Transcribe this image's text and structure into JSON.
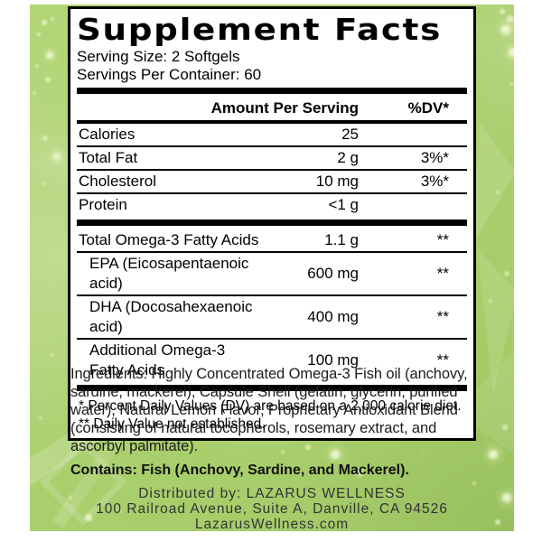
{
  "facts": {
    "title": "Supplement Facts",
    "serving_size": "Serving Size: 2 Softgels",
    "servings_per_container": "Servings Per Container: 60",
    "columns": {
      "amount": "Amount Per Serving",
      "dv": "%DV*"
    },
    "rows": [
      {
        "name": "Calories",
        "amount": "25",
        "dv": ""
      },
      {
        "name": "Total Fat",
        "amount": "2 g",
        "dv": "3%*"
      },
      {
        "name": "Cholesterol",
        "amount": "10 mg",
        "dv": "3%*"
      },
      {
        "name": "Protein",
        "amount": "<1 g",
        "dv": ""
      },
      {
        "name": "Total Omega-3 Fatty Acids",
        "amount": "1.1 g",
        "dv": "**"
      },
      {
        "name": "EPA (Eicosapentaenoic acid)",
        "amount": "600 mg",
        "dv": "**"
      },
      {
        "name": "DHA (Docosahexaenoic acid)",
        "amount": "400 mg",
        "dv": "**"
      },
      {
        "name": "Additional Omega-3 Fatty Acids",
        "amount": "100 mg",
        "dv": "**"
      }
    ],
    "footnotes": [
      "* Percent Daily Values (DV) are based on a 2,000 calorie diet.",
      "** Daily Value not established."
    ]
  },
  "ingredients": "Ingredients: Highly Concentrated Omega-3 Fish oil (anchovy, sardine, mackerel), Capsule Shell (gelatin, glycerin, purified water), Natural Lemon Flavor, Proprietary Antioxidant Blend (consisting of natural tocopherols, rosemary extract, and ascorbyl palmitate).",
  "contains": "Contains: Fish (Anchovy, Sardine, and Mackerel).",
  "distributor": {
    "line1": "Distributed by: LAZARUS WELLNESS",
    "line2": "100 Railroad Avenue, Suite A, Danville, CA 94526",
    "line3": "LazarusWellness.com"
  },
  "colors": {
    "background_green": "#abd06f",
    "bokeh_dot": "#eaf4c4",
    "panel_bg": "#ffffff",
    "panel_border": "#000000",
    "body_text": "#1c1c1c"
  }
}
